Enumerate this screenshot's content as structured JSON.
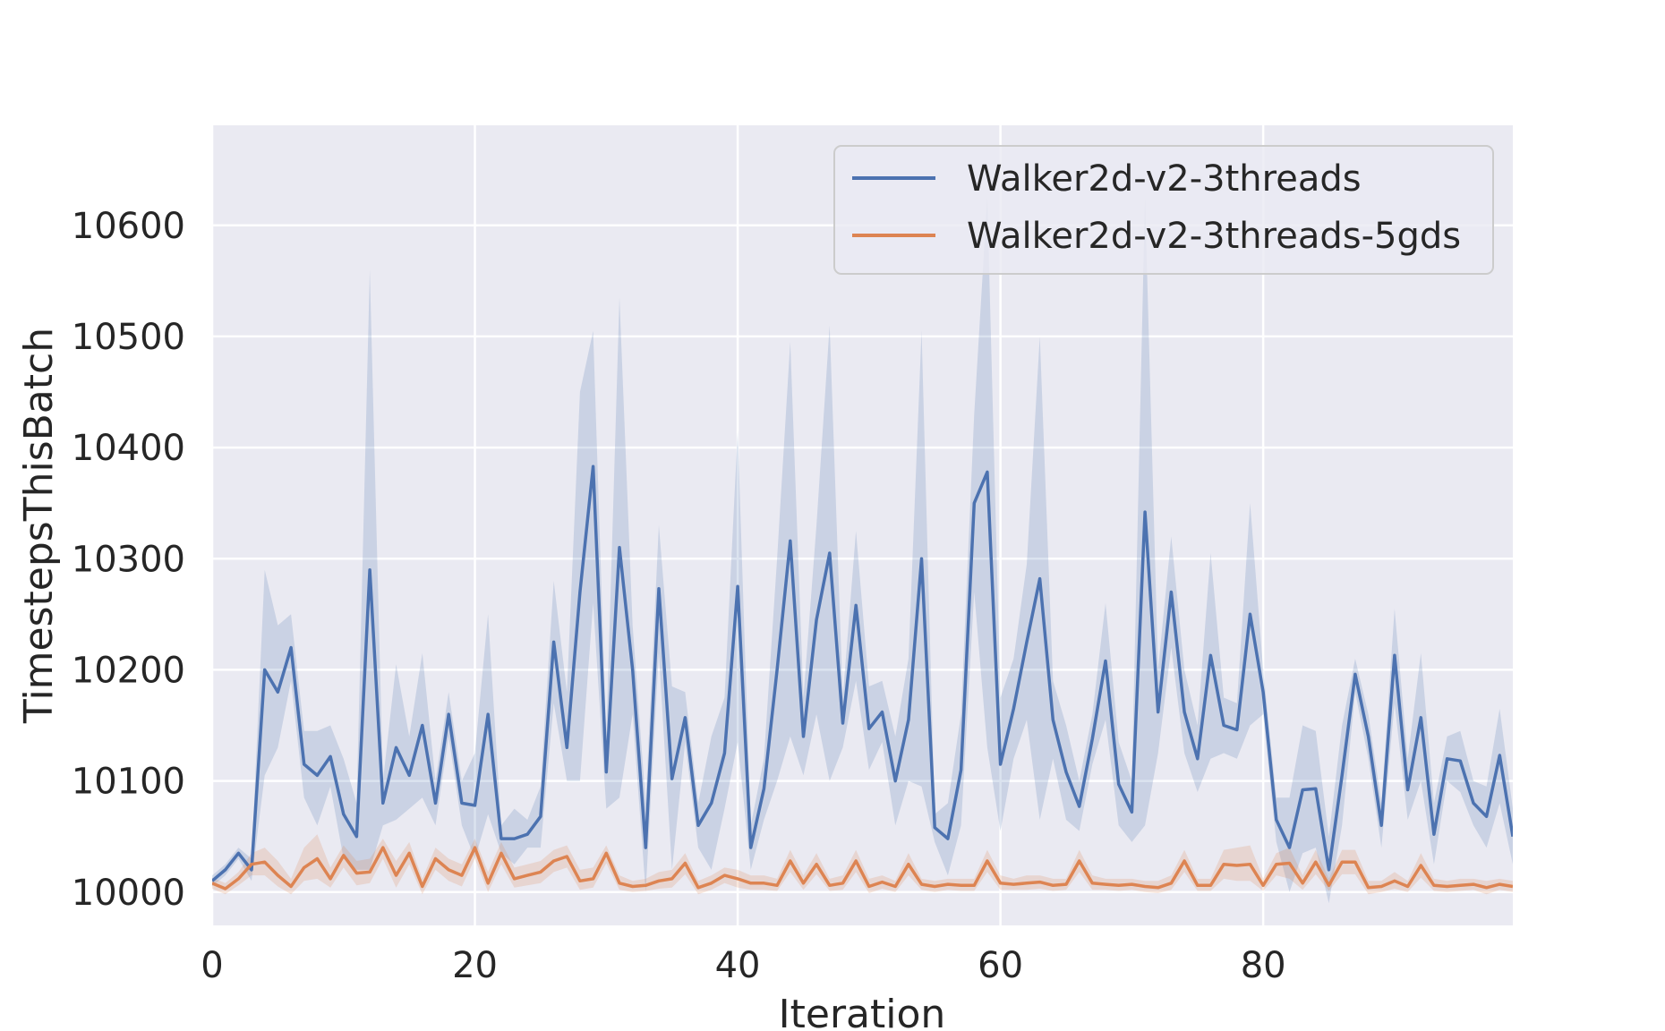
{
  "chart_data": {
    "type": "line",
    "title": "",
    "xlabel": "Iteration",
    "ylabel": "TimestepsThisBatch",
    "xlim": [
      0,
      99
    ],
    "ylim": [
      9970,
      10690
    ],
    "xticks": [
      0,
      20,
      40,
      60,
      80
    ],
    "yticks": [
      10000,
      10100,
      10200,
      10300,
      10400,
      10500,
      10600
    ],
    "grid": true,
    "legend_position": "top-right",
    "background_color": "#eaeaf2",
    "series": [
      {
        "name": "Walker2d-v2-3threads",
        "color": "#4c72b0",
        "values": [
          10010,
          10020,
          10035,
          10020,
          10200,
          10180,
          10220,
          10115,
          10105,
          10122,
          10070,
          10050,
          10290,
          10080,
          10130,
          10105,
          10150,
          10080,
          10160,
          10080,
          10078,
          10160,
          10048,
          10048,
          10052,
          10068,
          10225,
          10130,
          10270,
          10383,
          10108,
          10310,
          10200,
          10040,
          10273,
          10102,
          10157,
          10060,
          10080,
          10125,
          10275,
          10040,
          10093,
          10200,
          10316,
          10140,
          10245,
          10305,
          10152,
          10258,
          10147,
          10162,
          10100,
          10155,
          10300,
          10058,
          10048,
          10110,
          10350,
          10378,
          10115,
          10165,
          10225,
          10282,
          10155,
          10108,
          10077,
          10138,
          10208,
          10097,
          10072,
          10342,
          10162,
          10270,
          10162,
          10120,
          10213,
          10150,
          10146,
          10250,
          10180,
          10065,
          10040,
          10092,
          10093,
          10020,
          10105,
          10196,
          10140,
          10060,
          10213,
          10092,
          10157,
          10052,
          10120,
          10118,
          10080,
          10068,
          10123,
          10050
        ],
        "band_upper": [
          10015,
          10025,
          10040,
          10030,
          10290,
          10240,
          10250,
          10145,
          10145,
          10150,
          10120,
          10080,
          10560,
          10100,
          10205,
          10140,
          10215,
          10100,
          10180,
          10100,
          10125,
          10250,
          10060,
          10075,
          10065,
          10095,
          10280,
          10180,
          10450,
          10505,
          10140,
          10535,
          10240,
          10080,
          10330,
          10185,
          10180,
          10080,
          10140,
          10175,
          10415,
          10060,
          10120,
          10300,
          10495,
          10175,
          10330,
          10510,
          10175,
          10325,
          10185,
          10190,
          10140,
          10210,
          10505,
          10070,
          10080,
          10160,
          10430,
          10625,
          10175,
          10210,
          10295,
          10500,
          10190,
          10150,
          10100,
          10160,
          10260,
          10135,
          10100,
          10625,
          10200,
          10320,
          10200,
          10150,
          10305,
          10175,
          10170,
          10350,
          10200,
          10085,
          10085,
          10150,
          10145,
          10050,
          10150,
          10210,
          10160,
          10080,
          10255,
          10120,
          10215,
          10080,
          10140,
          10145,
          10100,
          10095,
          10165,
          10075
        ],
        "band_lower": [
          10005,
          10015,
          10030,
          10010,
          10105,
          10130,
          10190,
          10085,
          10060,
          10095,
          10030,
          10020,
          10020,
          10060,
          10065,
          10075,
          10085,
          10060,
          10140,
          10060,
          10030,
          10070,
          10035,
          10025,
          10040,
          10040,
          10170,
          10100,
          10100,
          10260,
          10075,
          10085,
          10160,
          10000,
          10215,
          10020,
          10135,
          10040,
          10020,
          10075,
          10135,
          10020,
          10065,
          10100,
          10140,
          10105,
          10160,
          10100,
          10130,
          10190,
          10110,
          10135,
          10060,
          10100,
          10095,
          10045,
          10015,
          10060,
          10270,
          10130,
          10055,
          10120,
          10155,
          10065,
          10120,
          10065,
          10055,
          10115,
          10155,
          10060,
          10045,
          10060,
          10125,
          10220,
          10125,
          10090,
          10120,
          10125,
          10120,
          10150,
          10160,
          10045,
          10000,
          10035,
          10040,
          9990,
          10060,
          10180,
          10120,
          10040,
          10170,
          10065,
          10100,
          10025,
          10100,
          10090,
          10060,
          10040,
          10080,
          10025
        ]
      },
      {
        "name": "Walker2d-v2-3threads-5gds",
        "color": "#dd8452",
        "values": [
          10008,
          10003,
          10012,
          10025,
          10027,
          10015,
          10005,
          10022,
          10030,
          10012,
          10033,
          10017,
          10018,
          10040,
          10015,
          10035,
          10005,
          10030,
          10020,
          10015,
          10040,
          10008,
          10035,
          10012,
          10015,
          10018,
          10028,
          10032,
          10010,
          10012,
          10035,
          10008,
          10005,
          10006,
          10010,
          10012,
          10026,
          10004,
          10008,
          10015,
          10012,
          10008,
          10008,
          10006,
          10028,
          10008,
          10025,
          10006,
          10008,
          10028,
          10005,
          10009,
          10005,
          10025,
          10007,
          10005,
          10007,
          10006,
          10006,
          10028,
          10008,
          10007,
          10008,
          10009,
          10006,
          10007,
          10028,
          10008,
          10007,
          10006,
          10007,
          10005,
          10004,
          10008,
          10028,
          10006,
          10006,
          10025,
          10024,
          10025,
          10006,
          10025,
          10026,
          10008,
          10027,
          10006,
          10027,
          10027,
          10004,
          10005,
          10010,
          10005,
          10024,
          10006,
          10005,
          10006,
          10007,
          10004,
          10007,
          10005
        ],
        "band_upper": [
          10013,
          10008,
          10018,
          10035,
          10040,
          10028,
          10012,
          10040,
          10052,
          10022,
          10042,
          10028,
          10030,
          10048,
          10028,
          10045,
          10012,
          10040,
          10030,
          10025,
          10048,
          10018,
          10045,
          10022,
          10025,
          10028,
          10038,
          10042,
          10020,
          10022,
          10042,
          10015,
          10010,
          10012,
          10018,
          10020,
          10035,
          10010,
          10015,
          10022,
          10020,
          10015,
          10015,
          10012,
          10038,
          10015,
          10035,
          10012,
          10015,
          10038,
          10012,
          10015,
          10010,
          10035,
          10012,
          10010,
          10012,
          10012,
          10012,
          10038,
          10015,
          10012,
          10015,
          10015,
          10012,
          10012,
          10038,
          10015,
          10012,
          10012,
          10012,
          10010,
          10010,
          10015,
          10038,
          10012,
          10012,
          10038,
          10040,
          10042,
          10012,
          10035,
          10040,
          10015,
          10038,
          10012,
          10038,
          10038,
          10010,
          10010,
          10018,
          10010,
          10035,
          10012,
          10010,
          10012,
          10012,
          10010,
          10012,
          10010
        ],
        "band_lower": [
          10003,
          9998,
          10006,
          10015,
          10015,
          10005,
          9998,
          10010,
          10012,
          10004,
          10022,
          10006,
          10008,
          10030,
          10004,
          10025,
          9998,
          10020,
          10010,
          10005,
          10030,
          10000,
          10025,
          10004,
          10006,
          10008,
          10018,
          10022,
          10002,
          10004,
          10026,
          10002,
          10000,
          10001,
          10003,
          10004,
          10016,
          9998,
          10002,
          10008,
          10004,
          10002,
          10002,
          10001,
          10018,
          10002,
          10016,
          10001,
          10002,
          10018,
          9999,
          10003,
          10000,
          10015,
          10002,
          10000,
          10002,
          10001,
          10001,
          10018,
          10002,
          10002,
          10002,
          10003,
          10001,
          10002,
          10018,
          10002,
          10002,
          10001,
          10002,
          10000,
          9999,
          10002,
          10018,
          10001,
          10001,
          10012,
          10010,
          10010,
          10001,
          10015,
          10012,
          10002,
          10016,
          10001,
          10016,
          10016,
          9998,
          10000,
          10003,
          10000,
          10013,
          10001,
          10000,
          10001,
          10002,
          9998,
          10002,
          10000
        ]
      }
    ]
  }
}
